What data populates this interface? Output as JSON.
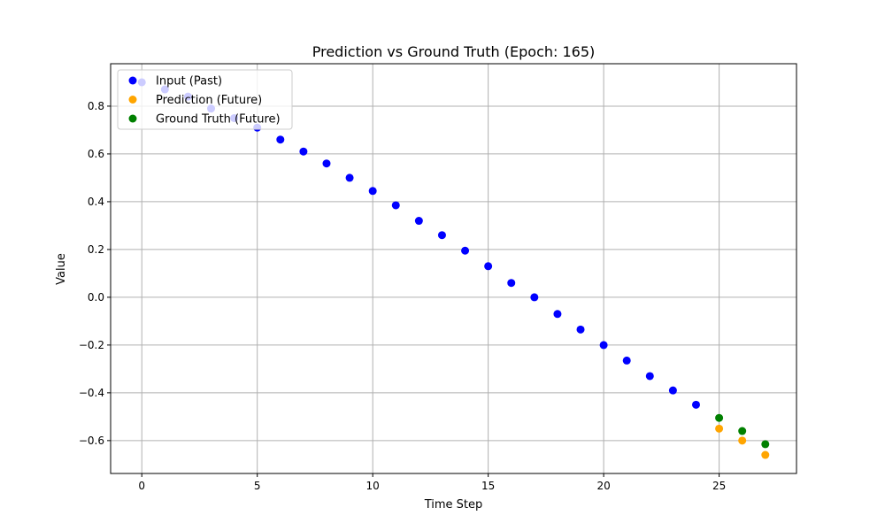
{
  "chart_data": {
    "type": "scatter",
    "title": "Prediction vs Ground Truth (Epoch: 165)",
    "xlabel": "Time Step",
    "ylabel": "Value",
    "xlim": [
      -1.35,
      28.35
    ],
    "ylim": [
      -0.7376,
      0.9776
    ],
    "x_ticks": [
      0,
      5,
      10,
      15,
      20,
      25
    ],
    "y_ticks": [
      -0.6,
      -0.4,
      -0.2,
      0.0,
      0.2,
      0.4,
      0.6,
      0.8
    ],
    "x_tick_labels": [
      "0",
      "5",
      "10",
      "15",
      "20",
      "25"
    ],
    "y_tick_labels": [
      "−0.6",
      "−0.4",
      "−0.2",
      "0.0",
      "0.2",
      "0.4",
      "0.6",
      "0.8"
    ],
    "grid": true,
    "legend_position": "upper-left",
    "series": [
      {
        "name": "Input (Past)",
        "color": "#0000ff",
        "x": [
          0,
          1,
          2,
          3,
          4,
          5,
          6,
          7,
          8,
          9,
          10,
          11,
          12,
          13,
          14,
          15,
          16,
          17,
          18,
          19,
          20,
          21,
          22,
          23,
          24
        ],
        "y": [
          0.9,
          0.87,
          0.84,
          0.79,
          0.75,
          0.71,
          0.66,
          0.61,
          0.56,
          0.5,
          0.445,
          0.385,
          0.32,
          0.26,
          0.195,
          0.13,
          0.06,
          0.0,
          -0.07,
          -0.135,
          -0.2,
          -0.265,
          -0.33,
          -0.39,
          -0.45
        ]
      },
      {
        "name": "Prediction (Future)",
        "color": "#ffa500",
        "x": [
          25,
          26,
          27
        ],
        "y": [
          -0.55,
          -0.6,
          -0.66
        ]
      },
      {
        "name": "Ground Truth (Future)",
        "color": "#008000",
        "x": [
          25,
          26,
          27
        ],
        "y": [
          -0.505,
          -0.56,
          -0.615
        ]
      }
    ]
  }
}
